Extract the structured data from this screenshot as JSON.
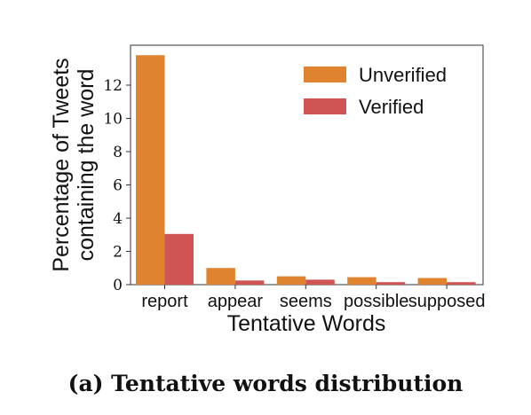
{
  "caption": "(a) Tentative words distribution",
  "colors": {
    "Unverified": "#e0832e",
    "Verified": "#cf5454"
  },
  "chart_data": {
    "type": "bar",
    "title": "",
    "xlabel": "Tentative Words",
    "ylabel_lines": [
      "Percentage of Tweets",
      "containing the word"
    ],
    "categories": [
      "report",
      "appear",
      "seems",
      "possible",
      "supposed"
    ],
    "series": [
      {
        "name": "Unverified",
        "values": [
          13.8,
          1.0,
          0.5,
          0.45,
          0.4
        ]
      },
      {
        "name": "Verified",
        "values": [
          3.05,
          0.25,
          0.3,
          0.15,
          0.15
        ]
      }
    ],
    "ylim": [
      0,
      14.4
    ],
    "yticks": [
      "0",
      "2",
      "4",
      "6",
      "8",
      "10",
      "12"
    ],
    "grid": false,
    "legend_position": "top-right"
  }
}
